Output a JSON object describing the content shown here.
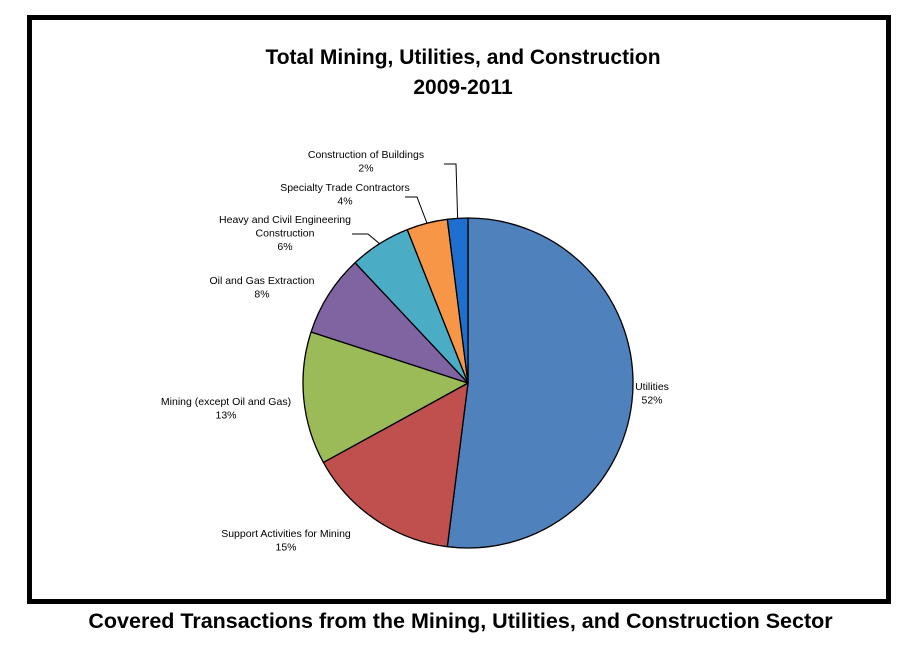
{
  "caption": "Covered Transactions from the Mining, Utilities, and Construction Sector",
  "chart_data": {
    "type": "pie",
    "title_lines": [
      "Total Mining, Utilities, and Construction",
      "2009-2011"
    ],
    "start": "12 o'clock",
    "direction": "clockwise",
    "slices": [
      {
        "label": "Utilities",
        "value": 52,
        "value_label": "52%",
        "color": "#4f81bd"
      },
      {
        "label": "Support Activities for Mining",
        "value": 15,
        "value_label": "15%",
        "color": "#c0504d"
      },
      {
        "label": "Mining (except Oil and Gas)",
        "value": 13,
        "value_label": "13%",
        "color": "#9bbb59"
      },
      {
        "label": "Oil and Gas Extraction",
        "value": 8,
        "value_label": "8%",
        "color": "#8064a2"
      },
      {
        "label": "Heavy and Civil Engineering Construction",
        "value": 6,
        "value_label": "6%",
        "color": "#4bacc6"
      },
      {
        "label": "Specialty Trade Contractors",
        "value": 4,
        "value_label": "4%",
        "color": "#f79646"
      },
      {
        "label": "Construction of Buildings",
        "value": 2,
        "value_label": "2%",
        "color": "#1f6fd1"
      }
    ]
  }
}
